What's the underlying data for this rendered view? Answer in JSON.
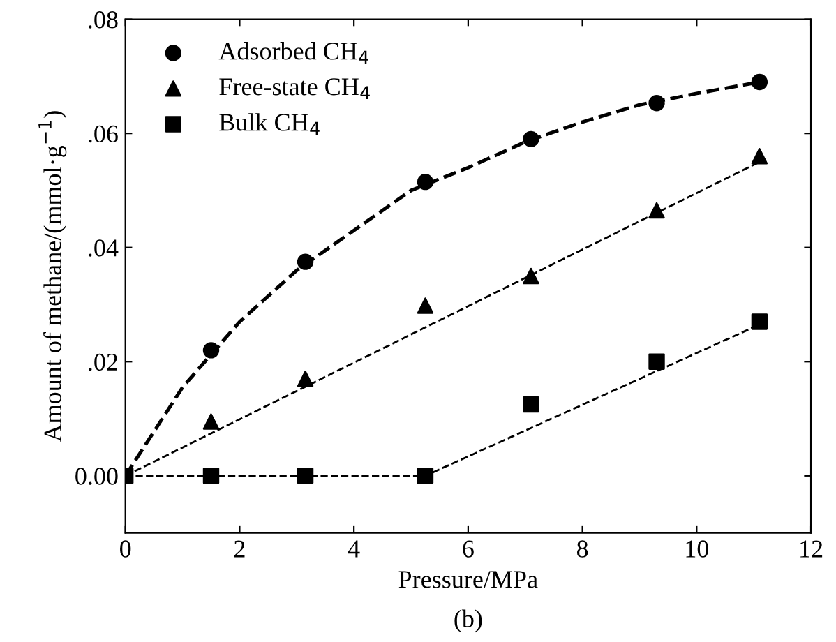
{
  "chart_data": {
    "type": "scatter",
    "xlabel": "Pressure/MPa",
    "ylabel": "Amount of methane/(mmol·g$^{−1}$)",
    "annotations": [
      "(b)"
    ],
    "xlim": [
      0,
      12
    ],
    "xticks": [
      0,
      2,
      4,
      6,
      8,
      10,
      12
    ],
    "ylim": [
      -0.01,
      0.08
    ],
    "yticks": [
      {
        "value": 0,
        "label": "0.00"
      },
      {
        "value": 0.02,
        "label": ".02"
      },
      {
        "value": 0.04,
        "label": ".04"
      },
      {
        "value": 0.06,
        "label": ".06"
      },
      {
        "value": 0.08,
        "label": ".08"
      }
    ],
    "grid": false,
    "legend": "top left",
    "series": [
      {
        "name": "Adsorbed CH$_{4}$",
        "marker": "circle",
        "color": "#000000",
        "x": [
          1.5,
          3.15,
          5.25,
          7.1,
          9.3,
          11.1
        ],
        "values": [
          0.022,
          0.0375,
          0.0515,
          0.059,
          0.0653,
          0.069
        ]
      },
      {
        "name": "Free-state CH$_{4}$",
        "marker": "triangle",
        "color": "#000000",
        "x": [
          1.5,
          3.15,
          5.25,
          7.1,
          9.3,
          11.1
        ],
        "values": [
          0.0095,
          0.017,
          0.0298,
          0.035,
          0.0465,
          0.056
        ]
      },
      {
        "name": "Bulk CH$_{4}$",
        "marker": "square",
        "color": "#000000",
        "x": [
          0,
          1.5,
          3.15,
          5.25,
          7.1,
          9.3,
          11.1
        ],
        "values": [
          0,
          0,
          0,
          0,
          0.0125,
          0.02,
          0.027
        ]
      },
      {
        "type": "line",
        "line_style": "dashed",
        "color": "#000000",
        "x": [
          0,
          1,
          2,
          3,
          4,
          5,
          6,
          7,
          8,
          9,
          10,
          11.1
        ],
        "values": [
          0,
          0.0155,
          0.027,
          0.036,
          0.043,
          0.05,
          0.054,
          0.0585,
          0.062,
          0.065,
          0.067,
          0.069
        ]
      },
      {
        "type": "line",
        "line_style": "dashed",
        "color": "#000000",
        "x": [
          0,
          11.1
        ],
        "values": [
          0,
          0.055
        ]
      },
      {
        "type": "line",
        "line_style": "dashed",
        "color": "#000000",
        "x": [
          0,
          5.25,
          11.1
        ],
        "values": [
          0,
          0,
          0.0265
        ]
      }
    ]
  }
}
